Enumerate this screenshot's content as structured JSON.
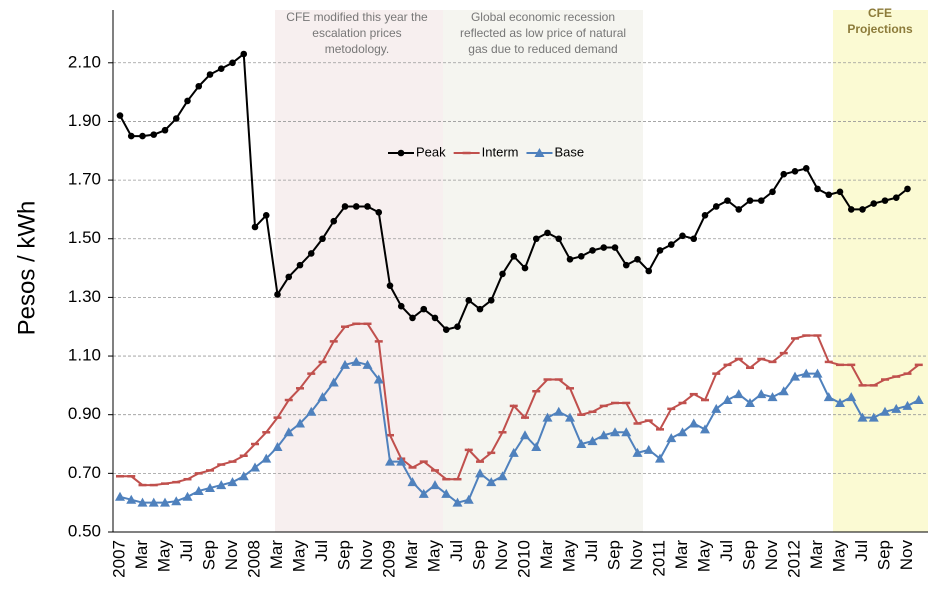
{
  "chart_data": {
    "type": "line",
    "y_label": "Pesos / kWh",
    "annotations": [
      {
        "lines": [
          "CFE modified this year the",
          "escalation prices",
          "metodology."
        ]
      },
      {
        "lines": [
          "Global economic recession",
          "reflected as low price of natural",
          "gas due to reduced demand"
        ]
      },
      {
        "lines": [
          "CFE",
          "Projections"
        ]
      }
    ],
    "categories": [
      "2007",
      null,
      "Mar",
      null,
      "May",
      null,
      "Jul",
      null,
      "Sep",
      null,
      "Nov",
      null,
      "2008",
      null,
      "Mar",
      null,
      "May",
      null,
      "Jul",
      null,
      "Sep",
      null,
      "Nov",
      null,
      "2009",
      null,
      "Mar",
      null,
      "May",
      null,
      "Jul",
      null,
      "Sep",
      null,
      "Nov",
      null,
      "2010",
      null,
      "Mar",
      null,
      "May",
      null,
      "Jul",
      null,
      "Sep",
      null,
      "Nov",
      null,
      "2011",
      null,
      "Mar",
      null,
      "May",
      null,
      "Jul",
      null,
      "Sep",
      null,
      "Nov",
      null,
      "2012",
      null,
      "Mar",
      null,
      "May",
      null,
      "Jul",
      null,
      "Sep",
      null,
      "Nov",
      null
    ],
    "series": [
      {
        "name": "Peak",
        "color": "#000000",
        "marker": "circle",
        "values": [
          1.92,
          1.85,
          1.85,
          1.855,
          1.87,
          1.91,
          1.97,
          2.02,
          2.06,
          2.08,
          2.1,
          2.13,
          1.54,
          1.58,
          1.31,
          1.37,
          1.41,
          1.45,
          1.5,
          1.56,
          1.61,
          1.61,
          1.61,
          1.59,
          1.34,
          1.27,
          1.23,
          1.26,
          1.23,
          1.19,
          1.2,
          1.29,
          1.26,
          1.29,
          1.38,
          1.44,
          1.4,
          1.5,
          1.52,
          1.5,
          1.43,
          1.44,
          1.46,
          1.47,
          1.47,
          1.41,
          1.43,
          1.39,
          1.46,
          1.48,
          1.51,
          1.5,
          1.58,
          1.61,
          1.63,
          1.6,
          1.63,
          1.63,
          1.66,
          1.72,
          1.73,
          1.74,
          1.67,
          1.65,
          1.66,
          1.6,
          1.6,
          1.62,
          1.63,
          1.64,
          1.67,
          null
        ]
      },
      {
        "name": "Interm",
        "color": "#c0504d",
        "marker": "dash",
        "values": [
          0.69,
          0.69,
          0.66,
          0.66,
          0.665,
          0.67,
          0.68,
          0.7,
          0.71,
          0.73,
          0.74,
          0.76,
          0.8,
          0.84,
          0.89,
          0.95,
          0.99,
          1.04,
          1.08,
          1.15,
          1.2,
          1.21,
          1.21,
          1.15,
          0.83,
          0.75,
          0.72,
          0.74,
          0.71,
          0.68,
          0.68,
          0.78,
          0.74,
          0.77,
          0.84,
          0.93,
          0.89,
          0.98,
          1.02,
          1.02,
          0.99,
          0.9,
          0.91,
          0.93,
          0.94,
          0.94,
          0.87,
          0.88,
          0.85,
          0.92,
          0.94,
          0.97,
          0.95,
          1.04,
          1.07,
          1.09,
          1.06,
          1.09,
          1.08,
          1.11,
          1.16,
          1.17,
          1.17,
          1.08,
          1.07,
          1.07,
          1.0,
          1.0,
          1.02,
          1.03,
          1.04,
          1.07
        ]
      },
      {
        "name": "Base",
        "color": "#4f81bd",
        "marker": "triangle",
        "values": [
          0.62,
          0.61,
          0.6,
          0.6,
          0.6,
          0.605,
          0.62,
          0.64,
          0.65,
          0.66,
          0.67,
          0.69,
          0.72,
          0.75,
          0.79,
          0.84,
          0.87,
          0.91,
          0.96,
          1.01,
          1.07,
          1.08,
          1.07,
          1.02,
          0.74,
          0.74,
          0.67,
          0.63,
          0.66,
          0.63,
          0.6,
          0.61,
          0.7,
          0.67,
          0.69,
          0.77,
          0.83,
          0.79,
          0.89,
          0.91,
          0.89,
          0.8,
          0.81,
          0.83,
          0.84,
          0.84,
          0.77,
          0.78,
          0.75,
          0.82,
          0.84,
          0.87,
          0.85,
          0.92,
          0.95,
          0.97,
          0.94,
          0.97,
          0.96,
          0.98,
          1.03,
          1.04,
          1.04,
          0.96,
          0.94,
          0.96,
          0.89,
          0.89,
          0.91,
          0.92,
          0.93,
          0.95
        ]
      }
    ],
    "ylim": [
      0.5,
      2.28
    ],
    "yticks": [
      {
        "value": 0.5,
        "label": "0.50"
      },
      {
        "value": 0.7,
        "label": "0.70"
      },
      {
        "value": 0.9,
        "label": "0.90"
      },
      {
        "value": 1.1,
        "label": "1.10"
      },
      {
        "value": 1.3,
        "label": "1.30"
      },
      {
        "value": 1.5,
        "label": "1.50"
      },
      {
        "value": 1.7,
        "label": "1.70"
      },
      {
        "value": 1.9,
        "label": "1.90"
      },
      {
        "value": 2.1,
        "label": "2.10"
      }
    ],
    "grid": true
  }
}
